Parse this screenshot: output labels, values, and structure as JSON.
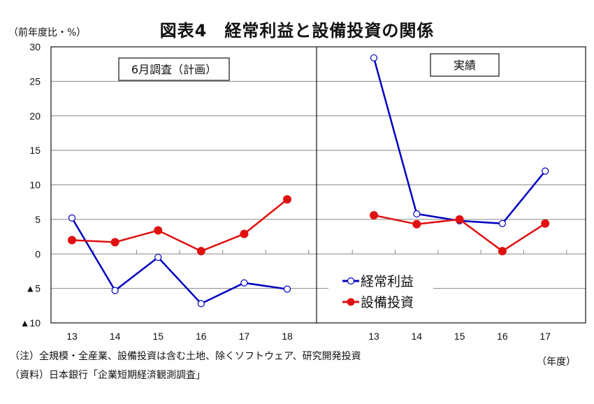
{
  "chart_data": {
    "type": "line",
    "title": "図表4　経常利益と設備投資の関係",
    "ylabel": "（前年度比・%）",
    "xlabel": "（年度）",
    "ylim": [
      -10,
      30
    ],
    "yticks": [
      30,
      25,
      20,
      15,
      10,
      5,
      0,
      -5,
      -10
    ],
    "ytick_labels": [
      "30",
      "25",
      "20",
      "15",
      "10",
      "5",
      "0",
      "▲5",
      "▲10"
    ],
    "grid": true,
    "legend": {
      "position": "bottom-right",
      "entries": [
        "経常利益",
        "設備投資"
      ]
    },
    "series_colors": {
      "経常利益": "#0000c0",
      "設備投資": "#e01010"
    },
    "panels": [
      {
        "label": "6月調査（計画）",
        "categories": [
          "13",
          "14",
          "15",
          "16",
          "17",
          "18"
        ],
        "series": [
          {
            "name": "経常利益",
            "values": [
              5.2,
              -5.3,
              -0.5,
              -7.2,
              -4.2,
              -5.1
            ]
          },
          {
            "name": "設備投資",
            "values": [
              2.0,
              1.7,
              3.4,
              0.4,
              2.9,
              7.9
            ]
          }
        ]
      },
      {
        "label": "実績",
        "categories": [
          "13",
          "14",
          "15",
          "16",
          "17"
        ],
        "series": [
          {
            "name": "経常利益",
            "values": [
              28.4,
              5.8,
              4.8,
              4.4,
              12.0
            ]
          },
          {
            "name": "設備投資",
            "values": [
              5.6,
              4.3,
              5.0,
              0.4,
              4.4
            ]
          }
        ]
      }
    ]
  },
  "notes": {
    "note1": "（注）全規模・全産業、設備投資は含む土地、除くソフトウェア、研究開発投資",
    "note2": "（資料）日本銀行「企業短期経済観測調査」"
  }
}
